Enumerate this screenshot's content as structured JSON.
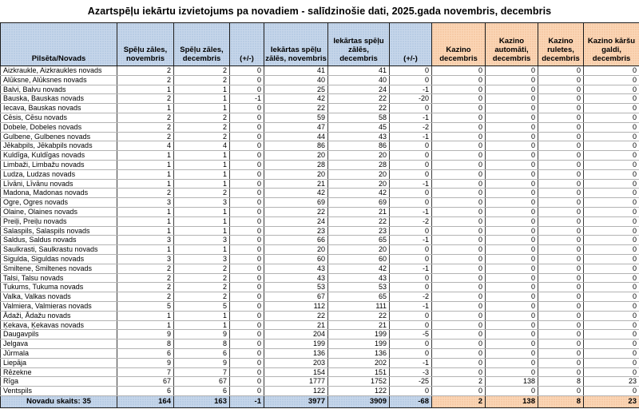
{
  "title": "Azartspēļu iekārtu izvietojums pa novadiem - salīdzinošie dati, 2025.gada novembris, decembris",
  "colors": {
    "header_blue": "#bdd0e7",
    "header_orange": "#f6c69e",
    "grid_dark": "#3d3d3d",
    "grid_light": "#b3b3b3"
  },
  "table": {
    "columns": [
      {
        "label": "Pilsēta/Novads",
        "group": "blue"
      },
      {
        "label": "Spēļu zāles, novembris",
        "group": "blue"
      },
      {
        "label": "Spēļu zāles, decembris",
        "group": "blue"
      },
      {
        "label": "(+/-)",
        "group": "blue"
      },
      {
        "label": "Iekārtas spēļu zālēs, novembris",
        "group": "blue"
      },
      {
        "label": "Iekārtas spēļu zālēs, decembris",
        "group": "blue"
      },
      {
        "label": "(+/-)",
        "group": "blue"
      },
      {
        "label": "Kazino decembris",
        "group": "orange"
      },
      {
        "label": "Kazino automāti, decembris",
        "group": "orange"
      },
      {
        "label": "Kazino ruletes, decembris",
        "group": "orange"
      },
      {
        "label": "Kazino kāršu galdi, decembris",
        "group": "orange"
      }
    ],
    "rows": [
      {
        "name": "Aizkraukle, Aizkraukles novads",
        "values": [
          2,
          2,
          0,
          41,
          41,
          0,
          0,
          0,
          0,
          0
        ]
      },
      {
        "name": "Alūksne, Alūksnes novads",
        "values": [
          2,
          2,
          0,
          40,
          40,
          0,
          0,
          0,
          0,
          0
        ]
      },
      {
        "name": "Balvi, Balvu novads",
        "values": [
          1,
          1,
          0,
          25,
          24,
          -1,
          0,
          0,
          0,
          0
        ]
      },
      {
        "name": "Bauska, Bauskas novads",
        "values": [
          2,
          1,
          -1,
          42,
          22,
          -20,
          0,
          0,
          0,
          0
        ]
      },
      {
        "name": "Iecava, Bauskas novads",
        "values": [
          1,
          1,
          0,
          22,
          22,
          0,
          0,
          0,
          0,
          0
        ]
      },
      {
        "name": "Cēsis, Cēsu novads",
        "values": [
          2,
          2,
          0,
          59,
          58,
          -1,
          0,
          0,
          0,
          0
        ]
      },
      {
        "name": "Dobele, Dobeles novads",
        "values": [
          2,
          2,
          0,
          47,
          45,
          -2,
          0,
          0,
          0,
          0
        ]
      },
      {
        "name": "Gulbene, Gulbenes novads",
        "values": [
          2,
          2,
          0,
          44,
          43,
          -1,
          0,
          0,
          0,
          0
        ]
      },
      {
        "name": "Jēkabpils, Jēkabpils novads",
        "values": [
          4,
          4,
          0,
          86,
          86,
          0,
          0,
          0,
          0,
          0
        ]
      },
      {
        "name": "Kuldīga, Kuldīgas novads",
        "values": [
          1,
          1,
          0,
          20,
          20,
          0,
          0,
          0,
          0,
          0
        ]
      },
      {
        "name": "Limbaži, Limbažu novads",
        "values": [
          1,
          1,
          0,
          28,
          28,
          0,
          0,
          0,
          0,
          0
        ]
      },
      {
        "name": "Ludza, Ludzas novads",
        "values": [
          1,
          1,
          0,
          20,
          20,
          0,
          0,
          0,
          0,
          0
        ]
      },
      {
        "name": "Līvāni, Līvānu novads",
        "values": [
          1,
          1,
          0,
          21,
          20,
          -1,
          0,
          0,
          0,
          0
        ]
      },
      {
        "name": "Madona, Madonas novads",
        "values": [
          2,
          2,
          0,
          42,
          42,
          0,
          0,
          0,
          0,
          0
        ]
      },
      {
        "name": "Ogre, Ogres novads",
        "values": [
          3,
          3,
          0,
          69,
          69,
          0,
          0,
          0,
          0,
          0
        ]
      },
      {
        "name": "Olaine, Olaines novads",
        "values": [
          1,
          1,
          0,
          22,
          21,
          -1,
          0,
          0,
          0,
          0
        ]
      },
      {
        "name": "Preiļi, Preiļu novads",
        "values": [
          1,
          1,
          0,
          24,
          22,
          -2,
          0,
          0,
          0,
          0
        ]
      },
      {
        "name": "Salaspils, Salaspils novads",
        "values": [
          1,
          1,
          0,
          23,
          23,
          0,
          0,
          0,
          0,
          0
        ]
      },
      {
        "name": "Saldus, Saldus novads",
        "values": [
          3,
          3,
          0,
          66,
          65,
          -1,
          0,
          0,
          0,
          0
        ]
      },
      {
        "name": "Saulkrasti, Saulkrastu novads",
        "values": [
          1,
          1,
          0,
          20,
          20,
          0,
          0,
          0,
          0,
          0
        ]
      },
      {
        "name": "Sigulda, Siguldas novads",
        "values": [
          3,
          3,
          0,
          60,
          60,
          0,
          0,
          0,
          0,
          0
        ]
      },
      {
        "name": "Smiltene, Smiltenes novads",
        "values": [
          2,
          2,
          0,
          43,
          42,
          -1,
          0,
          0,
          0,
          0
        ]
      },
      {
        "name": "Talsi, Talsu novads",
        "values": [
          2,
          2,
          0,
          43,
          43,
          0,
          0,
          0,
          0,
          0
        ]
      },
      {
        "name": "Tukums, Tukuma novads",
        "values": [
          2,
          2,
          0,
          53,
          53,
          0,
          0,
          0,
          0,
          0
        ]
      },
      {
        "name": "Valka, Valkas novads",
        "values": [
          2,
          2,
          0,
          67,
          65,
          -2,
          0,
          0,
          0,
          0
        ]
      },
      {
        "name": "Valmiera, Valmieras novads",
        "values": [
          5,
          5,
          0,
          112,
          111,
          -1,
          0,
          0,
          0,
          0
        ]
      },
      {
        "name": "Ādaži, Ādažu novads",
        "values": [
          1,
          1,
          0,
          22,
          22,
          0,
          0,
          0,
          0,
          0
        ]
      },
      {
        "name": "Ķekava, Ķekavas novads",
        "values": [
          1,
          1,
          0,
          21,
          21,
          0,
          0,
          0,
          0,
          0
        ]
      },
      {
        "name": "Daugavpils",
        "values": [
          9,
          9,
          0,
          204,
          199,
          -5,
          0,
          0,
          0,
          0
        ]
      },
      {
        "name": "Jelgava",
        "values": [
          8,
          8,
          0,
          199,
          199,
          0,
          0,
          0,
          0,
          0
        ]
      },
      {
        "name": "Jūrmala",
        "values": [
          6,
          6,
          0,
          136,
          136,
          0,
          0,
          0,
          0,
          0
        ]
      },
      {
        "name": "Liepāja",
        "values": [
          9,
          9,
          0,
          203,
          202,
          -1,
          0,
          0,
          0,
          0
        ]
      },
      {
        "name": "Rēzekne",
        "values": [
          7,
          7,
          0,
          154,
          151,
          -3,
          0,
          0,
          0,
          0
        ]
      },
      {
        "name": "Rīga",
        "values": [
          67,
          67,
          0,
          1777,
          1752,
          -25,
          2,
          138,
          8,
          23
        ]
      },
      {
        "name": "Ventspils",
        "values": [
          6,
          6,
          0,
          122,
          122,
          0,
          0,
          0,
          0,
          0
        ]
      }
    ],
    "footer": {
      "label": "Novadu skaits: 35",
      "values": [
        164,
        163,
        -1,
        3977,
        3909,
        -68,
        2,
        138,
        8,
        23
      ]
    }
  }
}
